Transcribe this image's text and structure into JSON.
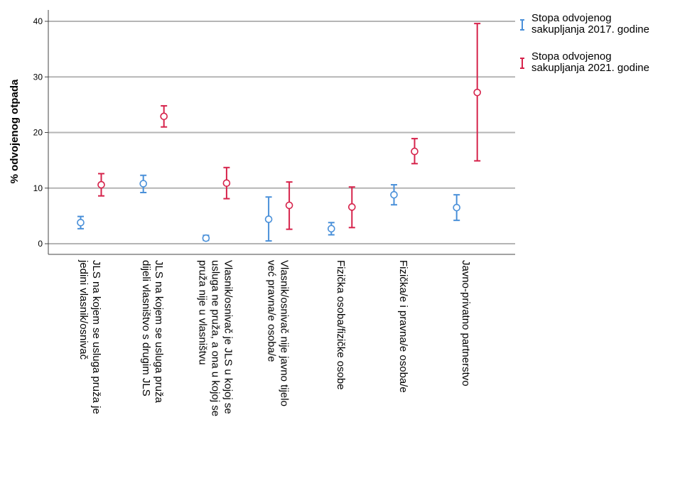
{
  "chart_data": {
    "type": "errorbar",
    "ylabel": "% odvojenog otpada",
    "ylim": [
      -2,
      42
    ],
    "yticks": [
      0,
      10,
      20,
      30,
      40
    ],
    "grid": "horizontal",
    "legend_position": "top-right",
    "categories": [
      [
        "JLS na kojem se usluga pruža je",
        "jedini vlasnik/osnivač"
      ],
      [
        "JLS na kojem se usluga pruža",
        "dijeli vlasništvo s drugim JLS"
      ],
      [
        "Vlasnik/osnivač je JLS u kojoj se",
        "usluga ne pruža, a ona u kojoj se",
        "pruža nije u vlasništvu"
      ],
      [
        "Vlasnik/osnivač nije javno tijelo",
        "već pravna/e osoba/e"
      ],
      [
        "Fizička osoba/fizičke osobe"
      ],
      [
        "Fizička/e i pravna/e osoba/e"
      ],
      [
        "Javno-privatno partnerstvo"
      ]
    ],
    "series": [
      {
        "name": [
          "Stopa odvojenog",
          "sakupljanja 2017. godine"
        ],
        "color": "#4a90d9",
        "mean": [
          3.8,
          10.8,
          1.0,
          4.4,
          2.7,
          8.8,
          6.5
        ],
        "low": [
          2.7,
          9.2,
          0.6,
          0.5,
          1.6,
          7.0,
          4.2
        ],
        "high": [
          4.9,
          12.3,
          1.5,
          8.4,
          3.8,
          10.6,
          8.8
        ]
      },
      {
        "name": [
          "Stopa odvojenog",
          "sakupljanja 2021. godine"
        ],
        "color": "#d6234b",
        "mean": [
          10.6,
          22.9,
          10.9,
          6.9,
          6.6,
          16.6,
          27.2
        ],
        "low": [
          8.6,
          21.0,
          8.1,
          2.6,
          2.9,
          14.4,
          14.9
        ],
        "high": [
          12.6,
          24.8,
          13.7,
          11.1,
          10.2,
          18.9,
          39.6
        ]
      }
    ]
  }
}
